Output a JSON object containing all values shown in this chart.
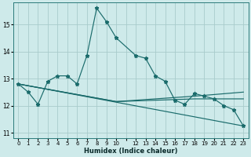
{
  "xlabel": "Humidex (Indice chaleur)",
  "bg_color": "#ceeaea",
  "grid_color": "#a8cccc",
  "line_color": "#1a6b6b",
  "xlim": [
    -0.5,
    23.5
  ],
  "ylim": [
    10.8,
    15.8
  ],
  "yticks": [
    11,
    12,
    13,
    14,
    15
  ],
  "xtick_labels": [
    "0",
    "1",
    "2",
    "3",
    "4",
    "5",
    "6",
    "7",
    "8",
    "9",
    "10",
    "",
    "12",
    "13",
    "14",
    "15",
    "16",
    "17",
    "18",
    "19",
    "20",
    "21",
    "22",
    "23"
  ],
  "xtick_pos": [
    0,
    1,
    2,
    3,
    4,
    5,
    6,
    7,
    8,
    9,
    10,
    11,
    12,
    13,
    14,
    15,
    16,
    17,
    18,
    19,
    20,
    21,
    22,
    23
  ],
  "series0_x": [
    0,
    1,
    2,
    3,
    4,
    5,
    6,
    7,
    8,
    9,
    10,
    12,
    13,
    14,
    15,
    16,
    17,
    18,
    19,
    20,
    21,
    22,
    23
  ],
  "series0_y": [
    12.8,
    12.5,
    12.05,
    12.9,
    13.1,
    13.1,
    12.8,
    13.85,
    15.6,
    15.1,
    14.5,
    13.85,
    13.75,
    13.1,
    12.9,
    12.2,
    12.05,
    12.45,
    12.35,
    12.25,
    12.0,
    11.85,
    11.25
  ],
  "series1_x": [
    0,
    23
  ],
  "series1_y": [
    12.8,
    11.25
  ],
  "series2_x": [
    0,
    10,
    18,
    23
  ],
  "series2_y": [
    12.8,
    12.15,
    12.35,
    12.5
  ],
  "series3_x": [
    0,
    10,
    18,
    23
  ],
  "series3_y": [
    12.8,
    12.15,
    12.25,
    12.25
  ]
}
